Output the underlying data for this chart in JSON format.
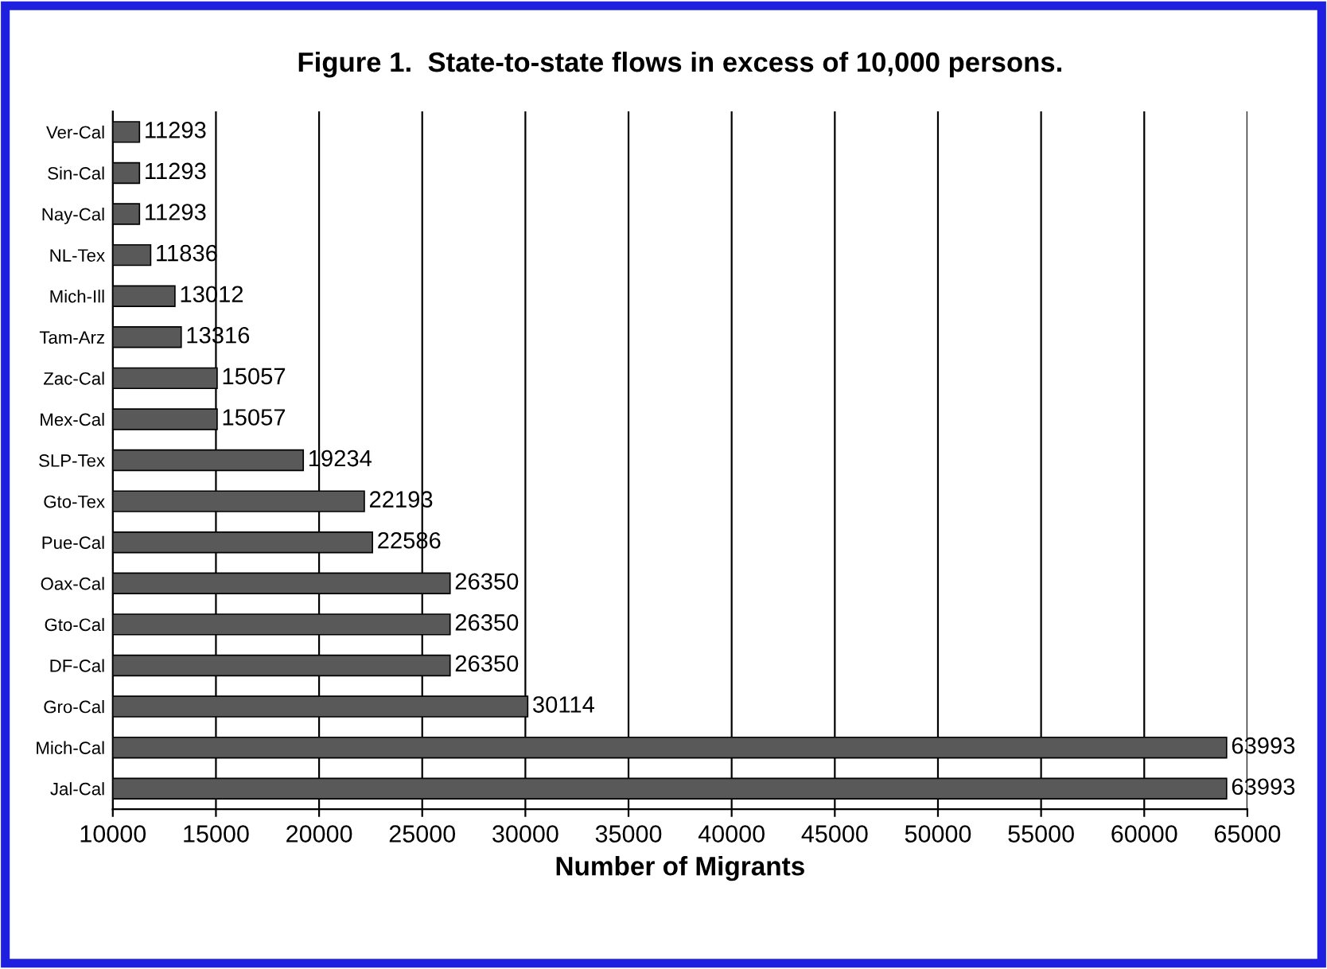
{
  "chart_data": {
    "type": "bar",
    "orientation": "horizontal",
    "title": "Figure 1.  State-to-state flows in excess of 10,000 persons.",
    "xlabel": "Number of Migrants",
    "categories": [
      "Ver-Cal",
      "Sin-Cal",
      "Nay-Cal",
      "NL-Tex",
      "Mich-Ill",
      "Tam-Arz",
      "Zac-Cal",
      "Mex-Cal",
      "SLP-Tex",
      "Gto-Tex",
      "Pue-Cal",
      "Oax-Cal",
      "Gto-Cal",
      "DF-Cal",
      "Gro-Cal",
      "Mich-Cal",
      "Jal-Cal"
    ],
    "values": [
      11293,
      11293,
      11293,
      11836,
      13012,
      13316,
      15057,
      15057,
      19234,
      22193,
      22586,
      26350,
      26350,
      26350,
      30114,
      63993,
      63993
    ],
    "color": "#595959",
    "data_labels": true,
    "xlim": [
      10000,
      65000
    ],
    "xticks": [
      10000,
      15000,
      20000,
      25000,
      30000,
      35000,
      40000,
      45000,
      50000,
      55000,
      60000,
      65000
    ],
    "grid": "x",
    "legend": false
  }
}
